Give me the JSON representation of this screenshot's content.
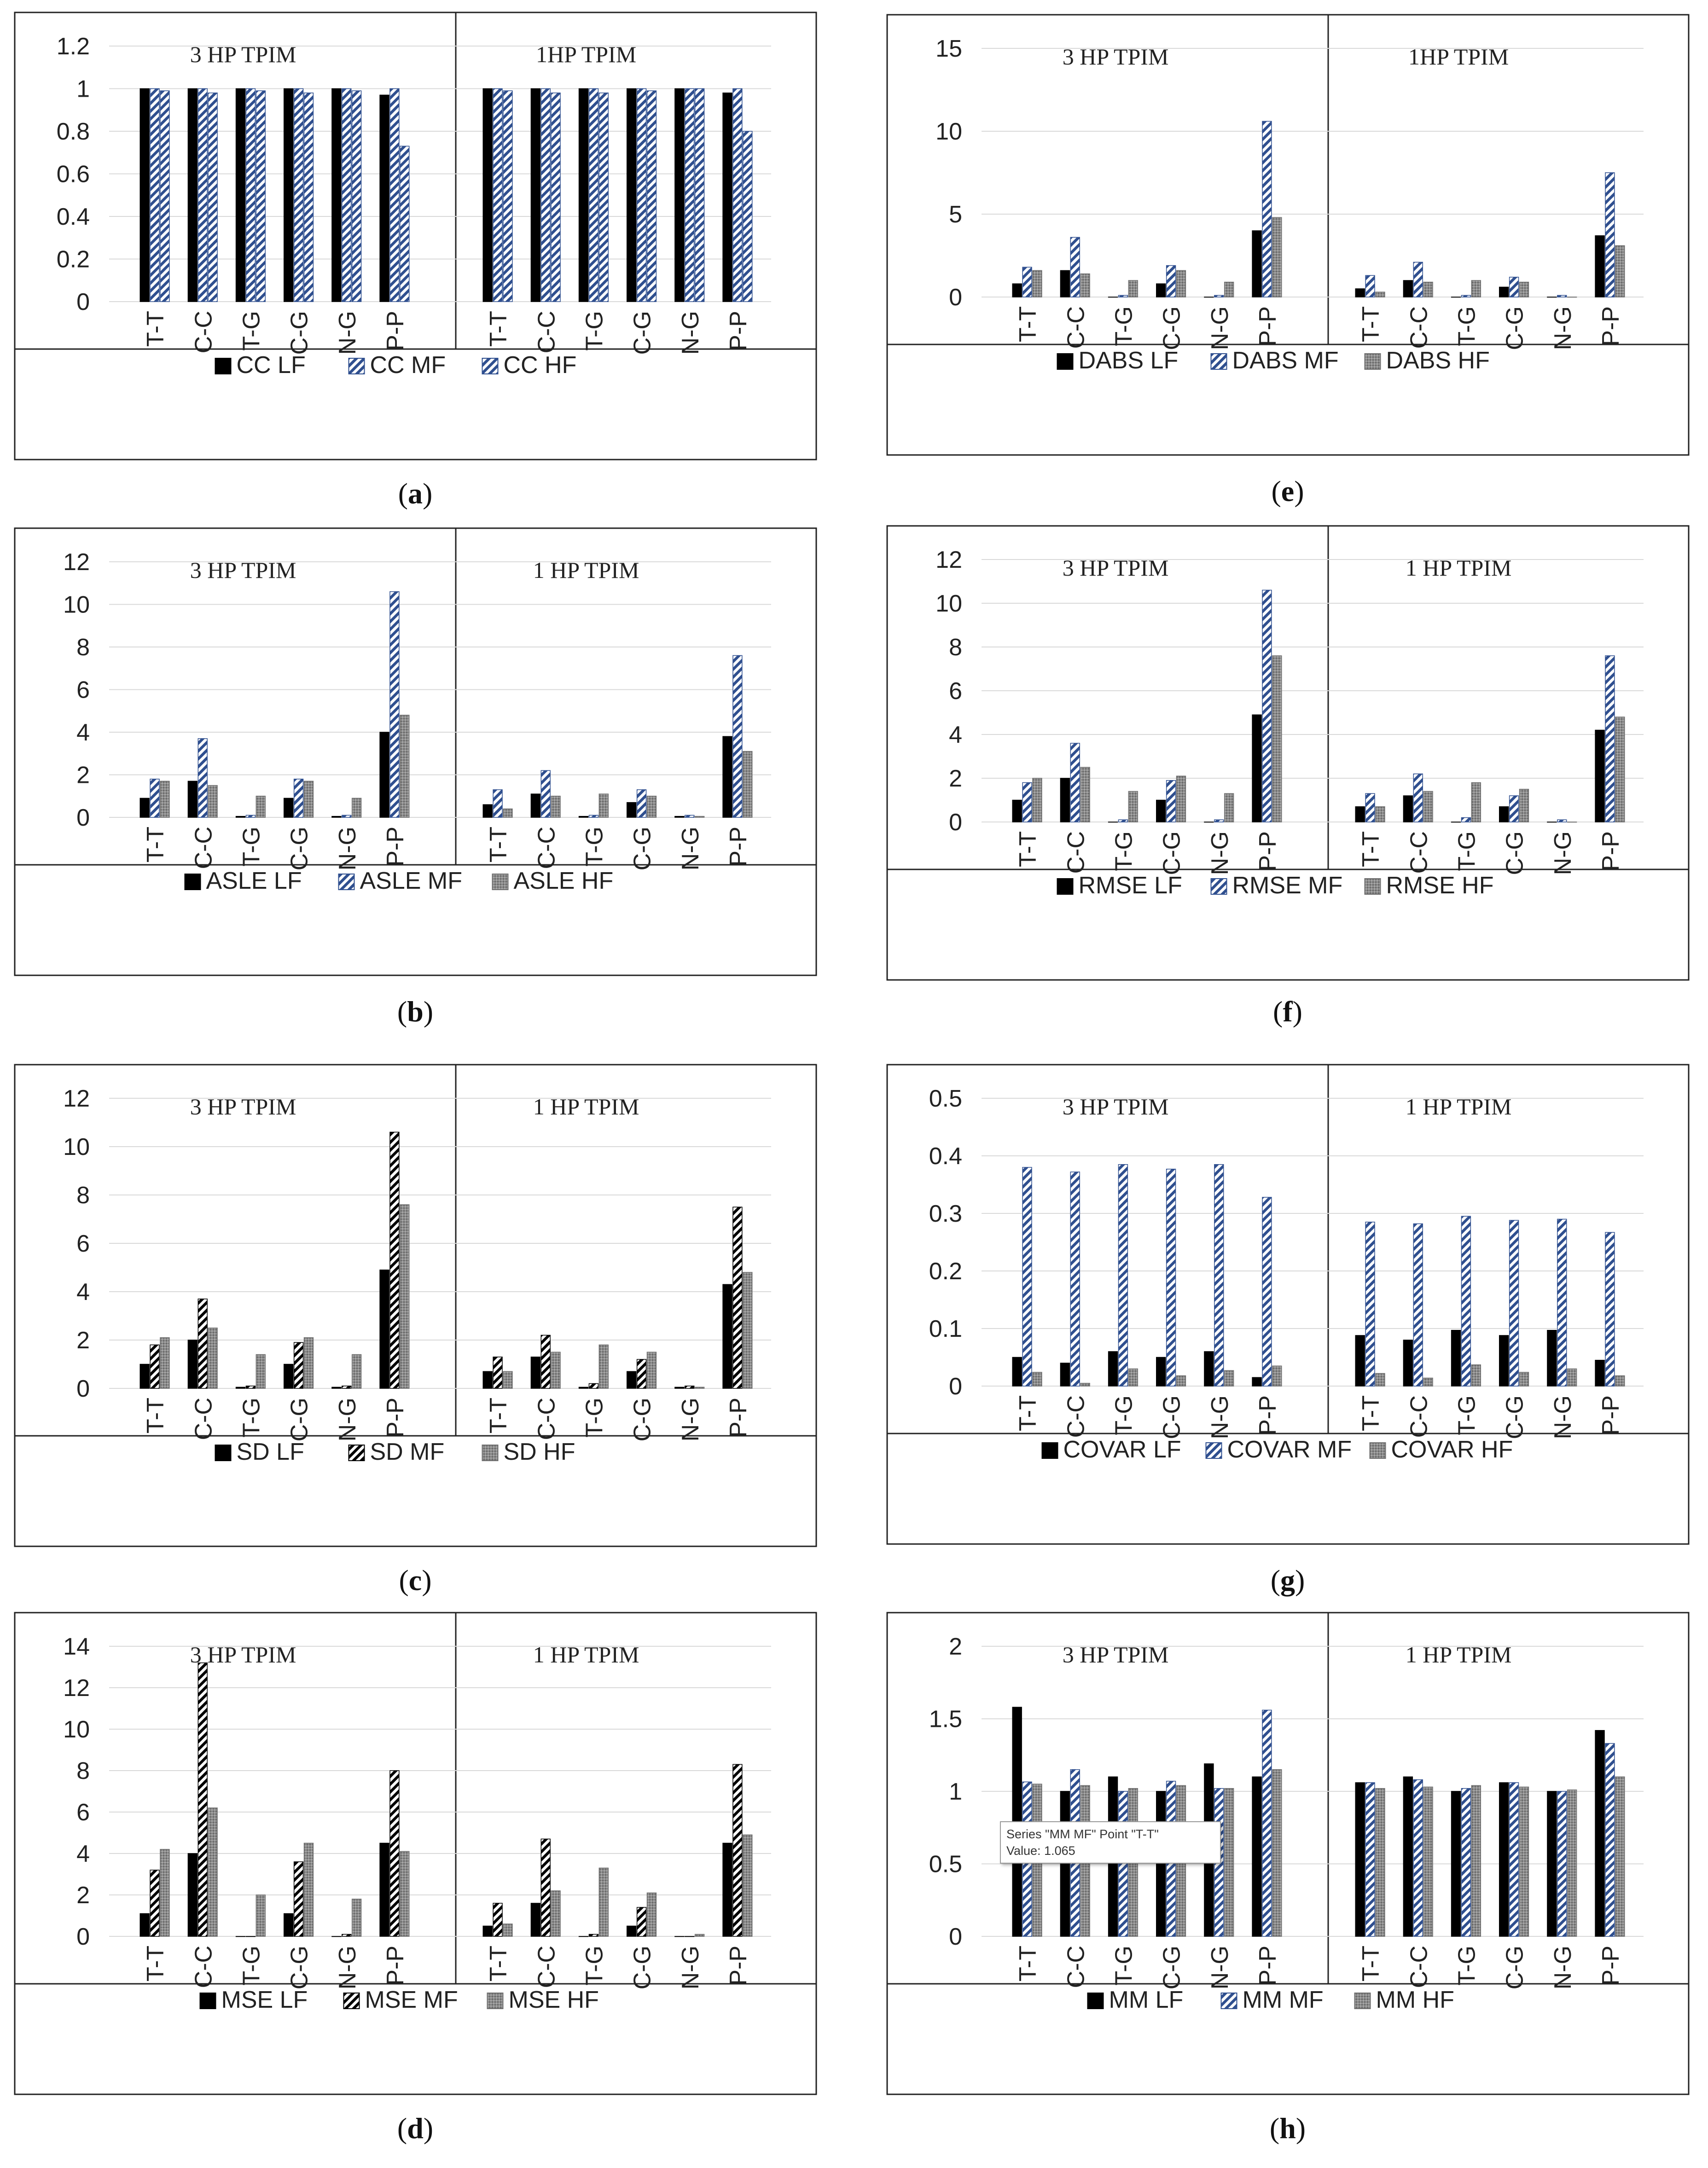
{
  "figure": {
    "captions": [
      {
        "id": "a",
        "label": "a"
      },
      {
        "id": "b",
        "label": "b"
      },
      {
        "id": "c",
        "label": "c"
      },
      {
        "id": "d",
        "label": "d"
      },
      {
        "id": "e",
        "label": "e"
      },
      {
        "id": "f",
        "label": "f"
      },
      {
        "id": "g",
        "label": "g"
      },
      {
        "id": "h",
        "label": "h"
      }
    ],
    "tooltip": {
      "line1": "Series \"MM MF\" Point \"T-T\"",
      "line2": "Value: 1.065"
    }
  },
  "colors": {
    "lf": "#000000",
    "mf_stroke": "#2f4f8f",
    "mf_fill": "#ffffff",
    "hf_fill": "#8c8c8c",
    "hf_stroke": "#6f6f6f"
  },
  "chart_data": [
    {
      "id": "a",
      "type": "bar",
      "groups": [
        "3 HP TPIM",
        "1HP TPIM"
      ],
      "categories": [
        "T-T",
        "C-C",
        "T-G",
        "C-G",
        "N-G",
        "P-P"
      ],
      "ylim": [
        0,
        1.2
      ],
      "yticks": [
        "0",
        "0.2",
        "0.4",
        "0.6",
        "0.8",
        "1",
        "1.2"
      ],
      "ytick_values": [
        0,
        0.2,
        0.4,
        0.6,
        0.8,
        1,
        1.2
      ],
      "legend": [
        "CC LF",
        "CC MF",
        "CC HF"
      ],
      "mf_style": "blue",
      "hf_style": "blue",
      "series": [
        {
          "name": "CC LF",
          "values": [
            [
              1,
              1,
              1,
              1,
              1,
              0.97
            ],
            [
              1,
              1,
              1,
              1,
              1,
              0.98
            ]
          ]
        },
        {
          "name": "CC MF",
          "values": [
            [
              1,
              1,
              1,
              1,
              1,
              1
            ],
            [
              1,
              1,
              1,
              1,
              1,
              1
            ]
          ]
        },
        {
          "name": "CC HF",
          "values": [
            [
              0.99,
              0.98,
              0.99,
              0.98,
              0.99,
              0.73
            ],
            [
              0.99,
              0.98,
              0.98,
              0.99,
              1,
              0.8
            ]
          ]
        }
      ]
    },
    {
      "id": "b",
      "type": "bar",
      "groups": [
        "3 HP TPIM",
        "1 HP TPIM"
      ],
      "categories": [
        "T-T",
        "C-C",
        "T-G",
        "C-G",
        "N-G",
        "P-P"
      ],
      "ylim": [
        0,
        12
      ],
      "yticks": [
        "0",
        "2",
        "4",
        "6",
        "8",
        "10",
        "12"
      ],
      "ytick_values": [
        0,
        2,
        4,
        6,
        8,
        10,
        12
      ],
      "legend": [
        "ASLE LF",
        "ASLE MF",
        "ASLE HF"
      ],
      "mf_style": "blue",
      "hf_style": "gray",
      "series": [
        {
          "name": "ASLE LF",
          "values": [
            [
              0.9,
              1.7,
              0.05,
              0.9,
              0.05,
              4.0
            ],
            [
              0.6,
              1.1,
              0.05,
              0.7,
              0.05,
              3.8
            ]
          ]
        },
        {
          "name": "ASLE MF",
          "values": [
            [
              1.8,
              3.7,
              0.1,
              1.8,
              0.1,
              10.6
            ],
            [
              1.3,
              2.2,
              0.1,
              1.3,
              0.1,
              7.6
            ]
          ]
        },
        {
          "name": "ASLE HF",
          "values": [
            [
              1.7,
              1.5,
              1.0,
              1.7,
              0.9,
              4.8
            ],
            [
              0.4,
              1.0,
              1.1,
              1.0,
              0.05,
              3.1
            ]
          ]
        }
      ]
    },
    {
      "id": "c",
      "type": "bar",
      "groups": [
        "3 HP TPIM",
        "1 HP TPIM"
      ],
      "categories": [
        "T-T",
        "C-C",
        "T-G",
        "C-G",
        "N-G",
        "P-P"
      ],
      "ylim": [
        0,
        12
      ],
      "yticks": [
        "0",
        "2",
        "4",
        "6",
        "8",
        "10",
        "12"
      ],
      "ytick_values": [
        0,
        2,
        4,
        6,
        8,
        10,
        12
      ],
      "legend": [
        "SD LF",
        "SD MF",
        "SD HF"
      ],
      "mf_style": "black",
      "hf_style": "gray",
      "series": [
        {
          "name": "SD LF",
          "values": [
            [
              1.0,
              2.0,
              0.05,
              1.0,
              0.05,
              4.9
            ],
            [
              0.7,
              1.3,
              0.05,
              0.7,
              0.05,
              4.3
            ]
          ]
        },
        {
          "name": "SD MF",
          "values": [
            [
              1.8,
              3.7,
              0.1,
              1.9,
              0.1,
              10.6
            ],
            [
              1.3,
              2.2,
              0.2,
              1.2,
              0.1,
              7.5
            ]
          ]
        },
        {
          "name": "SD HF",
          "values": [
            [
              2.1,
              2.5,
              1.4,
              2.1,
              1.4,
              7.6
            ],
            [
              0.7,
              1.5,
              1.8,
              1.5,
              0.05,
              4.8
            ]
          ]
        }
      ]
    },
    {
      "id": "d",
      "type": "bar",
      "groups": [
        "3 HP TPIM",
        "1 HP TPIM"
      ],
      "categories": [
        "T-T",
        "C-C",
        "T-G",
        "C-G",
        "N-G",
        "P-P"
      ],
      "ylim": [
        0,
        14
      ],
      "yticks": [
        "0",
        "2",
        "4",
        "6",
        "8",
        "10",
        "12",
        "14"
      ],
      "ytick_values": [
        0,
        2,
        4,
        6,
        8,
        10,
        12,
        14
      ],
      "legend": [
        "MSE LF",
        "MSE MF",
        "MSE HF"
      ],
      "mf_style": "black",
      "hf_style": "gray",
      "series": [
        {
          "name": "MSE LF",
          "values": [
            [
              1.1,
              4.0,
              0.0,
              1.1,
              0.0,
              4.5
            ],
            [
              0.5,
              1.6,
              0.0,
              0.5,
              0.0,
              4.5
            ]
          ]
        },
        {
          "name": "MSE MF",
          "values": [
            [
              3.2,
              13.2,
              0.0,
              3.6,
              0.1,
              8.0
            ],
            [
              1.6,
              4.7,
              0.1,
              1.4,
              0.0,
              8.3
            ]
          ]
        },
        {
          "name": "MSE HF",
          "values": [
            [
              4.2,
              6.2,
              2.0,
              4.5,
              1.8,
              4.1
            ],
            [
              0.6,
              2.2,
              3.3,
              2.1,
              0.1,
              4.9
            ]
          ]
        }
      ]
    },
    {
      "id": "e",
      "type": "bar",
      "groups": [
        "3 HP TPIM",
        "1HP TPIM"
      ],
      "categories": [
        "T-T",
        "C-C",
        "T-G",
        "C-G",
        "N-G",
        "P-P"
      ],
      "ylim": [
        0,
        15
      ],
      "yticks": [
        "0",
        "5",
        "10",
        "15"
      ],
      "ytick_values": [
        0,
        5,
        10,
        15
      ],
      "legend": [
        "DABS LF",
        "DABS MF",
        "DABS HF"
      ],
      "mf_style": "blue",
      "hf_style": "gray",
      "series": [
        {
          "name": "DABS LF",
          "values": [
            [
              0.8,
              1.6,
              0.0,
              0.8,
              0.0,
              4.0
            ],
            [
              0.5,
              1.0,
              0.0,
              0.6,
              0.0,
              3.7
            ]
          ]
        },
        {
          "name": "DABS MF",
          "values": [
            [
              1.8,
              3.6,
              0.1,
              1.9,
              0.1,
              10.6
            ],
            [
              1.3,
              2.1,
              0.1,
              1.2,
              0.1,
              7.5
            ]
          ]
        },
        {
          "name": "DABS HF",
          "values": [
            [
              1.6,
              1.4,
              1.0,
              1.6,
              0.9,
              4.8
            ],
            [
              0.3,
              0.9,
              1.0,
              0.9,
              0.0,
              3.1
            ]
          ]
        }
      ]
    },
    {
      "id": "f",
      "type": "bar",
      "groups": [
        "3 HP TPIM",
        "1 HP TPIM"
      ],
      "categories": [
        "T-T",
        "C-C",
        "T-G",
        "C-G",
        "N-G",
        "P-P"
      ],
      "ylim": [
        0,
        12
      ],
      "yticks": [
        "0",
        "2",
        "4",
        "6",
        "8",
        "10",
        "12"
      ],
      "ytick_values": [
        0,
        2,
        4,
        6,
        8,
        10,
        12
      ],
      "legend": [
        "RMSE LF",
        "RMSE MF",
        "RMSE HF"
      ],
      "mf_style": "blue",
      "hf_style": "gray",
      "series": [
        {
          "name": "RMSE LF",
          "values": [
            [
              1.0,
              2.0,
              0.0,
              1.0,
              0.0,
              4.9
            ],
            [
              0.7,
              1.2,
              0.0,
              0.7,
              0.0,
              4.2
            ]
          ]
        },
        {
          "name": "RMSE MF",
          "values": [
            [
              1.8,
              3.6,
              0.1,
              1.9,
              0.1,
              10.6
            ],
            [
              1.3,
              2.2,
              0.2,
              1.2,
              0.1,
              7.6
            ]
          ]
        },
        {
          "name": "RMSE HF",
          "values": [
            [
              2.0,
              2.5,
              1.4,
              2.1,
              1.3,
              7.6
            ],
            [
              0.7,
              1.4,
              1.8,
              1.5,
              0.0,
              4.8
            ]
          ]
        }
      ]
    },
    {
      "id": "g",
      "type": "bar",
      "groups": [
        "3 HP TPIM",
        "1 HP TPIM"
      ],
      "categories": [
        "T-T",
        "C-C",
        "T-G",
        "C-G",
        "N-G",
        "P-P"
      ],
      "ylim": [
        0,
        0.5
      ],
      "yticks": [
        "0",
        "0.1",
        "0.2",
        "0.3",
        "0.4",
        "0.5"
      ],
      "ytick_values": [
        0,
        0.1,
        0.2,
        0.3,
        0.4,
        0.5
      ],
      "legend": [
        "COVAR LF",
        "COVAR MF",
        "COVAR HF"
      ],
      "mf_style": "blue",
      "hf_style": "gray",
      "series": [
        {
          "name": "COVAR LF",
          "values": [
            [
              0.05,
              0.04,
              0.06,
              0.05,
              0.06,
              0.015
            ],
            [
              0.088,
              0.08,
              0.097,
              0.088,
              0.097,
              0.045
            ]
          ]
        },
        {
          "name": "COVAR MF",
          "values": [
            [
              0.38,
              0.372,
              0.385,
              0.377,
              0.385,
              0.328
            ],
            [
              0.285,
              0.282,
              0.295,
              0.288,
              0.29,
              0.267
            ]
          ]
        },
        {
          "name": "COVAR HF",
          "values": [
            [
              0.024,
              0.005,
              0.03,
              0.018,
              0.027,
              0.035
            ],
            [
              0.022,
              0.014,
              0.037,
              0.024,
              0.03,
              0.018
            ]
          ]
        }
      ]
    },
    {
      "id": "h",
      "type": "bar",
      "groups": [
        "3 HP TPIM",
        "1 HP TPIM"
      ],
      "categories": [
        "T-T",
        "C-C",
        "T-G",
        "C-G",
        "N-G",
        "P-P"
      ],
      "ylim": [
        0,
        2
      ],
      "yticks": [
        "0",
        "0.5",
        "1",
        "1.5",
        "2"
      ],
      "ytick_values": [
        0,
        0.5,
        1,
        1.5,
        2
      ],
      "legend": [
        "MM LF",
        "MM MF",
        "MM HF"
      ],
      "mf_style": "blue",
      "hf_style": "gray",
      "series": [
        {
          "name": "MM LF",
          "values": [
            [
              1.58,
              1.0,
              1.1,
              1.0,
              1.19,
              1.1
            ],
            [
              1.06,
              1.1,
              1.0,
              1.06,
              1.0,
              1.42
            ]
          ]
        },
        {
          "name": "MM MF",
          "values": [
            [
              1.065,
              1.15,
              1.0,
              1.07,
              1.02,
              1.56
            ],
            [
              1.06,
              1.08,
              1.02,
              1.06,
              1.0,
              1.33
            ]
          ]
        },
        {
          "name": "MM HF",
          "values": [
            [
              1.05,
              1.04,
              1.02,
              1.04,
              1.02,
              1.15
            ],
            [
              1.02,
              1.03,
              1.04,
              1.03,
              1.01,
              1.1
            ]
          ]
        }
      ]
    }
  ]
}
